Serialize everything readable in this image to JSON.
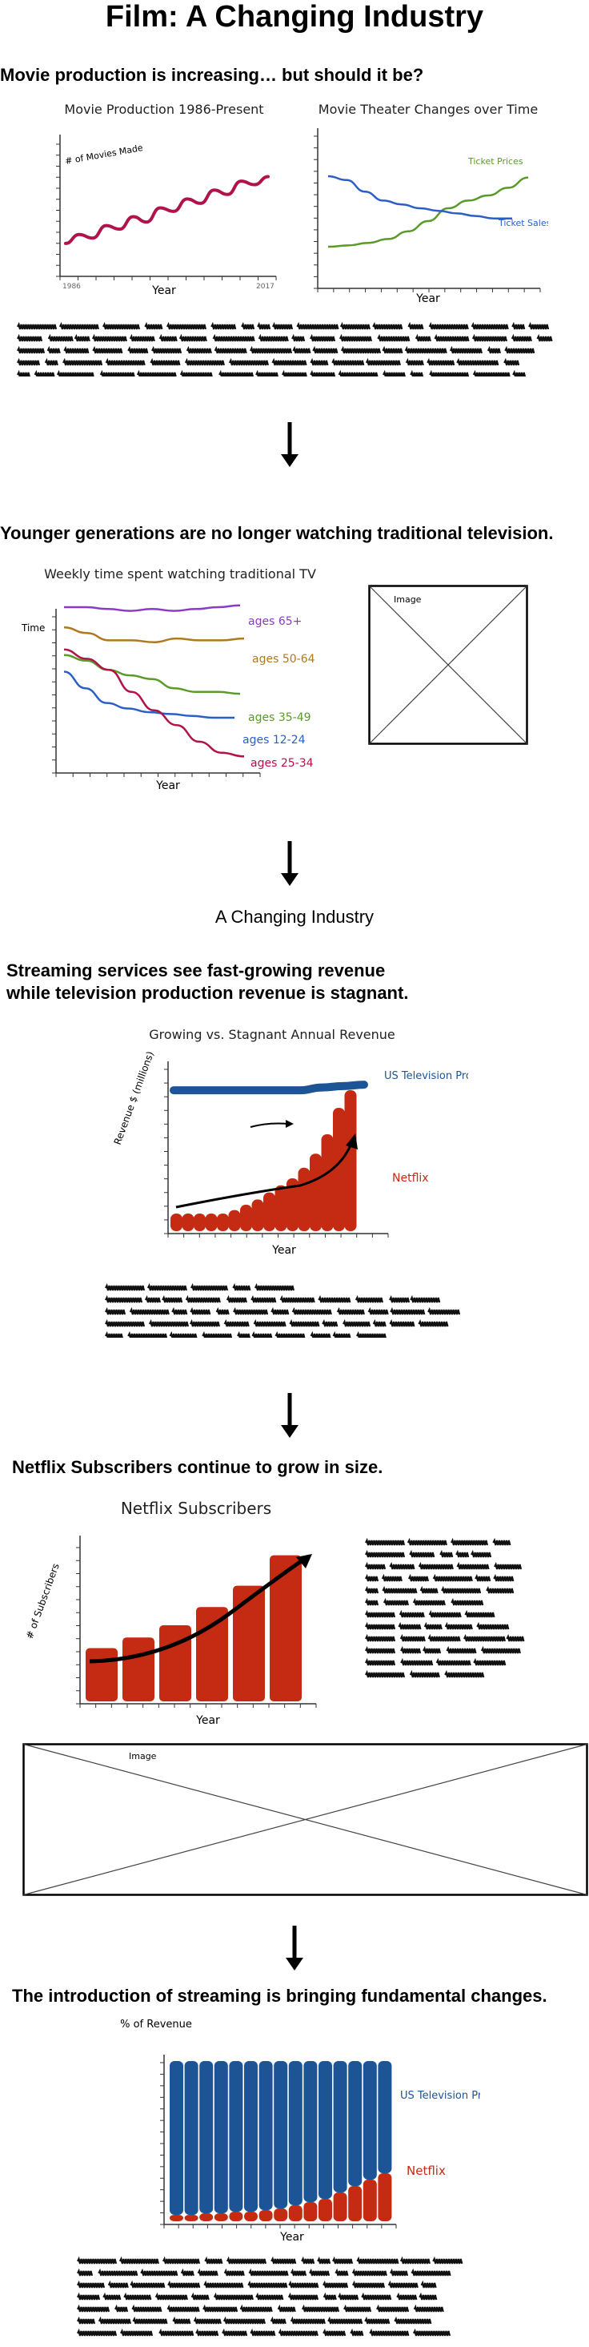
{
  "title": "Film: A Changing Industry",
  "sections": {
    "s1": {
      "heading": "Movie production is increasing… but should it be?"
    },
    "s2": {
      "heading": "Younger generations are no longer watching traditional television."
    },
    "s3": {
      "subtitle": "A Changing Industry",
      "heading_line1": "Streaming services see fast-growing revenue",
      "heading_line2": "while television production revenue is stagnant."
    },
    "s4": {
      "heading": "Netflix Subscribers continue to grow in size."
    },
    "s5": {
      "heading": "The introduction of streaming is bringing fundamental changes."
    }
  },
  "image_placeholder_label": "Image",
  "colors": {
    "crimson": "#b0124a",
    "green": "#5a9a2a",
    "blue": "#2a5fc8",
    "purple": "#8a3ac8",
    "brown": "#b07820",
    "netflix_red": "#c42b12",
    "tv_blue": "#1c5496"
  },
  "chart_data": [
    {
      "type": "line",
      "title": "Movie Production 1986-Present",
      "xlabel": "Year",
      "ylabel": "# of Movies Made",
      "x_tick_labels": [
        "1986",
        "2017"
      ],
      "series": [
        {
          "values": [
            2,
            3,
            2.6,
            4,
            3.6,
            5,
            4.4,
            6,
            5.6,
            7,
            6.5,
            8,
            7.5,
            9,
            8.6,
            9.5
          ]
        }
      ]
    },
    {
      "type": "line",
      "title": "Movie Theater Changes over Time",
      "xlabel": "Year",
      "series": [
        {
          "name": "Ticket Prices",
          "values": [
            2,
            2.1,
            2.3,
            2.6,
            3.2,
            4,
            5,
            5.6,
            6,
            6.6,
            7.4
          ]
        },
        {
          "name": "Ticket Sales",
          "values": [
            7.5,
            7.2,
            6.3,
            5.6,
            5.3,
            5,
            4.8,
            4.6,
            4.4,
            4.2,
            4.2
          ]
        }
      ]
    },
    {
      "type": "line",
      "title": "Weekly time spent watching traditional TV",
      "xlabel": "Year",
      "ylabel": "Time",
      "series": [
        {
          "name": "ages 65+",
          "values": [
            9,
            9,
            8.9,
            8.8,
            8.9,
            8.8,
            8.9,
            9,
            9.1
          ]
        },
        {
          "name": "ages 50-64",
          "values": [
            7.9,
            7.6,
            7.2,
            7.2,
            7.1,
            7.3,
            7.2,
            7.2,
            7.3
          ]
        },
        {
          "name": "ages 35-49",
          "values": [
            6.4,
            6.1,
            5.6,
            5.3,
            5.1,
            4.6,
            4.4,
            4.4,
            4.3
          ]
        },
        {
          "name": "ages 12-24",
          "values": [
            5.5,
            4.6,
            3.8,
            3.5,
            3.3,
            3.2,
            3.1,
            3,
            3
          ]
        },
        {
          "name": "ages 25-34",
          "values": [
            6.7,
            6.2,
            5.6,
            4.4,
            3.4,
            2.6,
            1.7,
            1.1,
            0.9
          ]
        }
      ]
    },
    {
      "type": "bar",
      "title": "Growing vs. Stagnant Annual Revenue",
      "xlabel": "Year",
      "ylabel": "Revenue $ (millions)",
      "series": [
        {
          "name": "US Television Production",
          "values": [
            10,
            10,
            10,
            10,
            10,
            10,
            10,
            10.2,
            10.3,
            10.4
          ]
        },
        {
          "name": "Netflix",
          "values": [
            1,
            1,
            1,
            1,
            1,
            1.2,
            1.5,
            1.8,
            2.2,
            2.6,
            3,
            3.6,
            4.4,
            5.5,
            7,
            8
          ]
        }
      ]
    },
    {
      "type": "bar",
      "title": "Netflix Subscribers",
      "xlabel": "Year",
      "ylabel": "# of Subscribers",
      "values": [
        3.5,
        4.2,
        5,
        6.2,
        7.6,
        9.6
      ]
    },
    {
      "type": "area",
      "title": "",
      "xlabel": "Year",
      "ylabel": "% of Revenue",
      "series": [
        {
          "name": "US Television Production",
          "values": [
            96,
            96,
            95,
            95,
            94,
            94,
            93,
            92,
            90,
            88,
            86,
            82,
            78,
            74,
            70
          ]
        },
        {
          "name": "Netflix",
          "values": [
            4,
            4,
            5,
            5,
            6,
            6,
            7,
            8,
            10,
            12,
            14,
            18,
            22,
            26,
            30
          ]
        }
      ]
    }
  ]
}
